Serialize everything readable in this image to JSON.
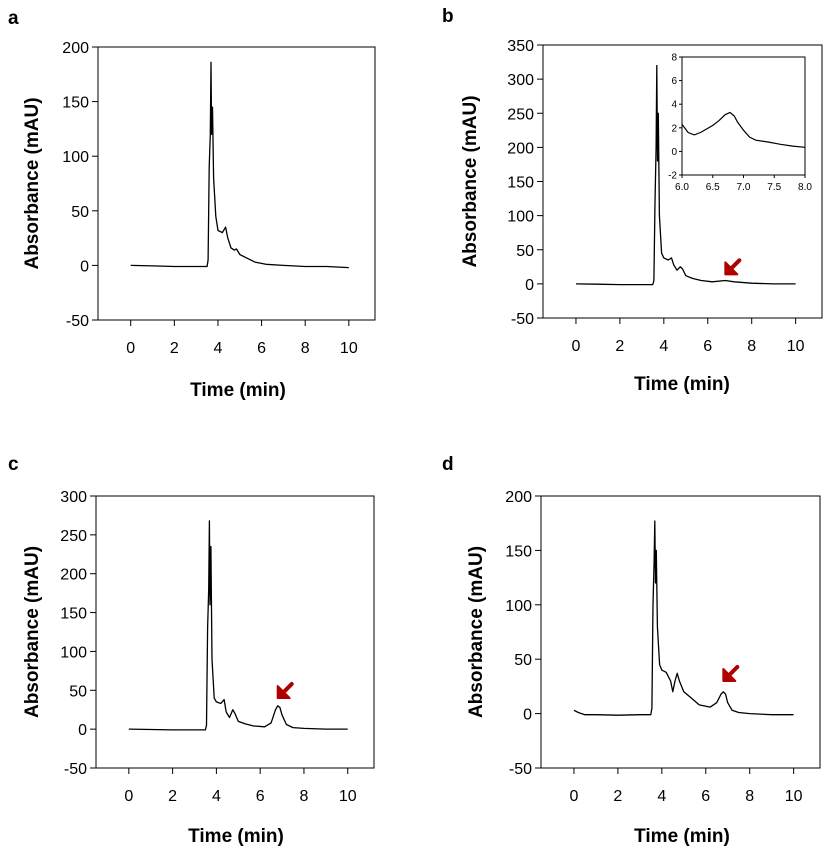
{
  "figure": {
    "panels": [
      "a",
      "b",
      "c",
      "d"
    ]
  },
  "colors": {
    "trace": "#000000",
    "arrow": "#b00000",
    "axis": "#000000"
  },
  "chart_data": [
    {
      "panel": "a",
      "type": "line",
      "xlabel": "Time (min)",
      "ylabel": "Absorbance (mAU)",
      "xlim": [
        -1.5,
        11.2
      ],
      "ylim": [
        -50,
        200
      ],
      "xticks": [
        0,
        2,
        4,
        6,
        8,
        10
      ],
      "yticks": [
        -50,
        0,
        50,
        100,
        150,
        200
      ],
      "xtick_labels": [
        "0",
        "2",
        "4",
        "6",
        "8",
        "10"
      ],
      "ytick_labels": [
        "-50",
        "0",
        "50",
        "100",
        "150",
        "200"
      ],
      "series": [
        {
          "name": "chromatogram",
          "points": [
            [
              0,
              0
            ],
            [
              1,
              -0.5
            ],
            [
              2,
              -1
            ],
            [
              3,
              -1
            ],
            [
              3.5,
              -1
            ],
            [
              3.55,
              5
            ],
            [
              3.6,
              90
            ],
            [
              3.65,
              120
            ],
            [
              3.68,
              186
            ],
            [
              3.71,
              120
            ],
            [
              3.75,
              145
            ],
            [
              3.8,
              80
            ],
            [
              3.9,
              45
            ],
            [
              4.0,
              32
            ],
            [
              4.2,
              30
            ],
            [
              4.35,
              35
            ],
            [
              4.45,
              25
            ],
            [
              4.6,
              16
            ],
            [
              4.75,
              14
            ],
            [
              4.85,
              15
            ],
            [
              5.0,
              10
            ],
            [
              5.3,
              7
            ],
            [
              5.7,
              3
            ],
            [
              6.2,
              1
            ],
            [
              7,
              0
            ],
            [
              8,
              -1
            ],
            [
              9,
              -1
            ],
            [
              10,
              -2
            ]
          ]
        }
      ],
      "arrow": null,
      "inset": null
    },
    {
      "panel": "b",
      "type": "line",
      "xlabel": "Time (min)",
      "ylabel": "Absorbance (mAU)",
      "xlim": [
        -1.5,
        11.2
      ],
      "ylim": [
        -50,
        350
      ],
      "xticks": [
        0,
        2,
        4,
        6,
        8,
        10
      ],
      "yticks": [
        -50,
        0,
        50,
        100,
        150,
        200,
        250,
        300,
        350
      ],
      "xtick_labels": [
        "0",
        "2",
        "4",
        "6",
        "8",
        "10"
      ],
      "ytick_labels": [
        "-50",
        "0",
        "50",
        "100",
        "150",
        "200",
        "250",
        "300",
        "350"
      ],
      "series": [
        {
          "name": "chromatogram",
          "points": [
            [
              0,
              0
            ],
            [
              1,
              -0.5
            ],
            [
              2,
              -1
            ],
            [
              3,
              -1
            ],
            [
              3.5,
              -1
            ],
            [
              3.55,
              5
            ],
            [
              3.6,
              120
            ],
            [
              3.65,
              200
            ],
            [
              3.68,
              320
            ],
            [
              3.71,
              180
            ],
            [
              3.75,
              250
            ],
            [
              3.8,
              100
            ],
            [
              3.9,
              45
            ],
            [
              4.0,
              38
            ],
            [
              4.2,
              35
            ],
            [
              4.35,
              38
            ],
            [
              4.45,
              28
            ],
            [
              4.6,
              20
            ],
            [
              4.75,
              25
            ],
            [
              4.85,
              22
            ],
            [
              5.0,
              12
            ],
            [
              5.3,
              8
            ],
            [
              5.7,
              5
            ],
            [
              6.2,
              3
            ],
            [
              6.8,
              5
            ],
            [
              7.2,
              3
            ],
            [
              8,
              1
            ],
            [
              9,
              0
            ],
            [
              10,
              0
            ]
          ]
        }
      ],
      "arrow": {
        "x": 6.8,
        "y": 14
      },
      "inset": {
        "xlim": [
          6.0,
          8.0
        ],
        "ylim": [
          -2,
          8
        ],
        "xticks": [
          6.0,
          6.5,
          7.0,
          7.5,
          8.0
        ],
        "yticks": [
          -2,
          0,
          2,
          4,
          6,
          8
        ],
        "xtick_labels": [
          "6.0",
          "6.5",
          "7.0",
          "7.5",
          "8.0"
        ],
        "ytick_labels": [
          "-2",
          "0",
          "2",
          "4",
          "6",
          "8"
        ],
        "points": [
          [
            6.0,
            2.3
          ],
          [
            6.1,
            1.6
          ],
          [
            6.2,
            1.4
          ],
          [
            6.3,
            1.6
          ],
          [
            6.4,
            1.9
          ],
          [
            6.5,
            2.2
          ],
          [
            6.6,
            2.6
          ],
          [
            6.7,
            3.1
          ],
          [
            6.78,
            3.3
          ],
          [
            6.85,
            3.0
          ],
          [
            6.9,
            2.5
          ],
          [
            7.0,
            1.8
          ],
          [
            7.1,
            1.2
          ],
          [
            7.2,
            0.95
          ],
          [
            7.4,
            0.8
          ],
          [
            7.6,
            0.6
          ],
          [
            7.8,
            0.45
          ],
          [
            8.0,
            0.35
          ]
        ]
      }
    },
    {
      "panel": "c",
      "type": "line",
      "xlabel": "Time (min)",
      "ylabel": "Absorbance (mAU)",
      "xlim": [
        -1.5,
        11.2
      ],
      "ylim": [
        -50,
        300
      ],
      "xticks": [
        0,
        2,
        4,
        6,
        8,
        10
      ],
      "yticks": [
        -50,
        0,
        50,
        100,
        150,
        200,
        250,
        300
      ],
      "xtick_labels": [
        "0",
        "2",
        "4",
        "6",
        "8",
        "10"
      ],
      "ytick_labels": [
        "-50",
        "0",
        "50",
        "100",
        "150",
        "200",
        "250",
        "300"
      ],
      "series": [
        {
          "name": "chromatogram",
          "points": [
            [
              0,
              0
            ],
            [
              1,
              -0.5
            ],
            [
              2,
              -1
            ],
            [
              3,
              -1
            ],
            [
              3.5,
              -1
            ],
            [
              3.55,
              5
            ],
            [
              3.6,
              130
            ],
            [
              3.65,
              180
            ],
            [
              3.68,
              268
            ],
            [
              3.71,
              160
            ],
            [
              3.75,
              235
            ],
            [
              3.8,
              90
            ],
            [
              3.9,
              40
            ],
            [
              4.0,
              35
            ],
            [
              4.2,
              33
            ],
            [
              4.35,
              38
            ],
            [
              4.45,
              22
            ],
            [
              4.6,
              15
            ],
            [
              4.75,
              25
            ],
            [
              4.85,
              20
            ],
            [
              5.0,
              10
            ],
            [
              5.3,
              7
            ],
            [
              5.7,
              4
            ],
            [
              6.2,
              3
            ],
            [
              6.5,
              8
            ],
            [
              6.7,
              25
            ],
            [
              6.8,
              30
            ],
            [
              6.9,
              28
            ],
            [
              7.0,
              18
            ],
            [
              7.2,
              6
            ],
            [
              7.5,
              2
            ],
            [
              8,
              1
            ],
            [
              9,
              0
            ],
            [
              10,
              0
            ]
          ]
        }
      ],
      "arrow": {
        "x": 6.8,
        "y": 40
      },
      "inset": null
    },
    {
      "panel": "d",
      "type": "line",
      "xlabel": "Time (min)",
      "ylabel": "Absorbance (mAU)",
      "xlim": [
        -1.5,
        11.2
      ],
      "ylim": [
        -50,
        200
      ],
      "xticks": [
        0,
        2,
        4,
        6,
        8,
        10
      ],
      "yticks": [
        -50,
        0,
        50,
        100,
        150,
        200
      ],
      "xtick_labels": [
        "0",
        "2",
        "4",
        "6",
        "8",
        "10"
      ],
      "ytick_labels": [
        "-50",
        "0",
        "50",
        "100",
        "150",
        "200"
      ],
      "series": [
        {
          "name": "chromatogram",
          "points": [
            [
              0,
              3
            ],
            [
              0.2,
              1
            ],
            [
              0.5,
              -1
            ],
            [
              1,
              -1
            ],
            [
              2,
              -1.5
            ],
            [
              3,
              -1
            ],
            [
              3.5,
              -1
            ],
            [
              3.55,
              5
            ],
            [
              3.6,
              100
            ],
            [
              3.65,
              140
            ],
            [
              3.68,
              177
            ],
            [
              3.71,
              120
            ],
            [
              3.75,
              150
            ],
            [
              3.8,
              80
            ],
            [
              3.9,
              45
            ],
            [
              4.0,
              40
            ],
            [
              4.2,
              38
            ],
            [
              4.4,
              30
            ],
            [
              4.5,
              20
            ],
            [
              4.6,
              30
            ],
            [
              4.7,
              37
            ],
            [
              4.8,
              30
            ],
            [
              5.0,
              20
            ],
            [
              5.3,
              15
            ],
            [
              5.7,
              8
            ],
            [
              6.2,
              6
            ],
            [
              6.5,
              10
            ],
            [
              6.7,
              18
            ],
            [
              6.8,
              20
            ],
            [
              6.9,
              18
            ],
            [
              7.0,
              10
            ],
            [
              7.2,
              3
            ],
            [
              7.5,
              1
            ],
            [
              8,
              0
            ],
            [
              9,
              -1
            ],
            [
              10,
              -1
            ]
          ]
        }
      ],
      "arrow": {
        "x": 6.8,
        "y": 30
      },
      "inset": null
    }
  ]
}
